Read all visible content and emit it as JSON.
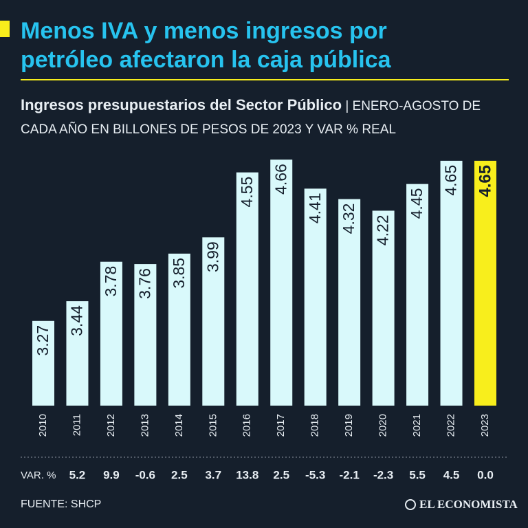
{
  "chart_data": {
    "type": "bar",
    "title_lines": [
      "Menos IVA y menos ingresos por",
      "petróleo afectaron la caja pública"
    ],
    "subtitle_bold": "Ingresos presupuestarios del Sector Público",
    "subtitle": "| ENERO-AGOSTO DE CADA AÑO EN BILLONES DE PESOS DE 2023 Y VAR % REAL",
    "categories": [
      "2010",
      "2011",
      "2012",
      "2013",
      "2014",
      "2015",
      "2016",
      "2017",
      "2018",
      "2019",
      "2020",
      "2021",
      "2022",
      "2023"
    ],
    "values": [
      3.27,
      3.44,
      3.78,
      3.76,
      3.85,
      3.99,
      4.55,
      4.66,
      4.41,
      4.32,
      4.22,
      4.45,
      4.65,
      4.65
    ],
    "colors": [
      "#d9f9fb",
      "#d9f9fb",
      "#d9f9fb",
      "#d9f9fb",
      "#d9f9fb",
      "#d9f9fb",
      "#d9f9fb",
      "#d9f9fb",
      "#d9f9fb",
      "#d9f9fb",
      "#d9f9fb",
      "#d9f9fb",
      "#d9f9fb",
      "#f8ee1c"
    ],
    "ylim": [
      2.54,
      4.75
    ],
    "change": {
      "label": "VAR. %",
      "values": [
        null,
        5.2,
        9.9,
        -0.6,
        2.5,
        3.7,
        13.8,
        2.5,
        -5.3,
        -2.1,
        -2.3,
        5.5,
        4.5,
        0.0
      ],
      "value_labels": [
        null,
        "5.2",
        "9.9",
        "-0.6",
        "2.5",
        "3.7",
        "13.8",
        "2.5",
        "-5.3",
        "-2.1",
        "-2.3",
        "5.5",
        "4.5",
        "0.0"
      ]
    },
    "source": "FUENTE: SHCP",
    "brand": "EL ECONOMISTA"
  }
}
